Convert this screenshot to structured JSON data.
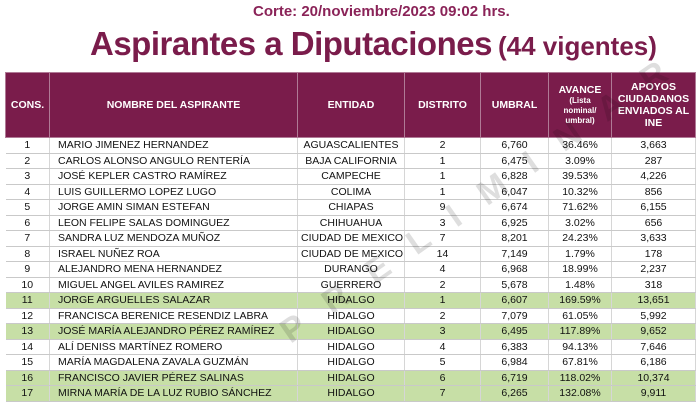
{
  "header": {
    "cut_label": "Corte: 20/noviembre/2023 09:02 hrs.",
    "title": "Aspirantes a Diputaciones",
    "subtitle": "(44 vigentes)"
  },
  "watermark": "PRELIMINAR",
  "table": {
    "columns": {
      "cons": "CONS.",
      "nombre": "NOMBRE DEL ASPIRANTE",
      "entidad": "ENTIDAD",
      "distrito": "DISTRITO",
      "umbral": "UMBRAL",
      "avance": "AVANCE",
      "avance_note": "(Lista nominal/ umbral)",
      "apoyos": "APOYOS CIUDADANOS ENVIADOS AL INE"
    },
    "highlight_color": "#c7dfa6",
    "rows": [
      {
        "cons": "1",
        "nombre": "MARIO JIMENEZ HERNANDEZ",
        "entidad": "AGUASCALIENTES",
        "distrito": "2",
        "umbral": "6,760",
        "avance": "36.46%",
        "apoyos": "3,663",
        "highlight": false
      },
      {
        "cons": "2",
        "nombre": "CARLOS ALONSO ANGULO RENTERÍA",
        "entidad": "BAJA CALIFORNIA",
        "distrito": "1",
        "umbral": "6,475",
        "avance": "3.09%",
        "apoyos": "287",
        "highlight": false
      },
      {
        "cons": "3",
        "nombre": "JOSÉ KEPLER CASTRO RAMÍREZ",
        "entidad": "CAMPECHE",
        "distrito": "1",
        "umbral": "6,828",
        "avance": "39.53%",
        "apoyos": "4,226",
        "highlight": false
      },
      {
        "cons": "4",
        "nombre": "LUIS GUILLERMO LOPEZ LUGO",
        "entidad": "COLIMA",
        "distrito": "1",
        "umbral": "6,047",
        "avance": "10.32%",
        "apoyos": "856",
        "highlight": false
      },
      {
        "cons": "5",
        "nombre": "JORGE AMIN SIMAN ESTEFAN",
        "entidad": "CHIAPAS",
        "distrito": "9",
        "umbral": "6,674",
        "avance": "71.62%",
        "apoyos": "6,155",
        "highlight": false
      },
      {
        "cons": "6",
        "nombre": "LEON FELIPE SALAS DOMINGUEZ",
        "entidad": "CHIHUAHUA",
        "distrito": "3",
        "umbral": "6,925",
        "avance": "3.02%",
        "apoyos": "656",
        "highlight": false
      },
      {
        "cons": "7",
        "nombre": "SANDRA LUZ MENDOZA MUÑOZ",
        "entidad": "CIUDAD DE MEXICO",
        "distrito": "7",
        "umbral": "8,201",
        "avance": "24.23%",
        "apoyos": "3,633",
        "highlight": false
      },
      {
        "cons": "8",
        "nombre": "ISRAEL NUÑEZ ROA",
        "entidad": "CIUDAD DE MEXICO",
        "distrito": "14",
        "umbral": "7,149",
        "avance": "1.79%",
        "apoyos": "178",
        "highlight": false
      },
      {
        "cons": "9",
        "nombre": "ALEJANDRO MENA HERNANDEZ",
        "entidad": "DURANGO",
        "distrito": "4",
        "umbral": "6,968",
        "avance": "18.99%",
        "apoyos": "2,237",
        "highlight": false
      },
      {
        "cons": "10",
        "nombre": "MIGUEL ANGEL AVILES RAMIREZ",
        "entidad": "GUERRERO",
        "distrito": "2",
        "umbral": "5,678",
        "avance": "1.48%",
        "apoyos": "318",
        "highlight": false
      },
      {
        "cons": "11",
        "nombre": "JORGE ARGUELLES SALAZAR",
        "entidad": "HIDALGO",
        "distrito": "1",
        "umbral": "6,607",
        "avance": "169.59%",
        "apoyos": "13,651",
        "highlight": true
      },
      {
        "cons": "12",
        "nombre": "FRANCISCA BERENICE RESENDIZ LABRA",
        "entidad": "HIDALGO",
        "distrito": "2",
        "umbral": "7,079",
        "avance": "61.05%",
        "apoyos": "5,992",
        "highlight": false
      },
      {
        "cons": "13",
        "nombre": "JOSÉ MARÍA ALEJANDRO PÉREZ RAMÍREZ",
        "entidad": "HIDALGO",
        "distrito": "3",
        "umbral": "6,495",
        "avance": "117.89%",
        "apoyos": "9,652",
        "highlight": true
      },
      {
        "cons": "14",
        "nombre": "ALÍ DENISS MARTÍNEZ ROMERO",
        "entidad": "HIDALGO",
        "distrito": "4",
        "umbral": "6,383",
        "avance": "94.13%",
        "apoyos": "7,646",
        "highlight": false
      },
      {
        "cons": "15",
        "nombre": "MARÍA MAGDALENA ZAVALA GUZMÁN",
        "entidad": "HIDALGO",
        "distrito": "5",
        "umbral": "6,984",
        "avance": "67.81%",
        "apoyos": "6,186",
        "highlight": false
      },
      {
        "cons": "16",
        "nombre": "FRANCISCO JAVIER PÉREZ SALINAS",
        "entidad": "HIDALGO",
        "distrito": "6",
        "umbral": "6,719",
        "avance": "118.02%",
        "apoyos": "10,374",
        "highlight": true
      },
      {
        "cons": "17",
        "nombre": "MIRNA MARÍA DE LA LUZ RUBIO SÁNCHEZ",
        "entidad": "HIDALGO",
        "distrito": "7",
        "umbral": "6,265",
        "avance": "132.08%",
        "apoyos": "9,911",
        "highlight": true
      }
    ]
  }
}
